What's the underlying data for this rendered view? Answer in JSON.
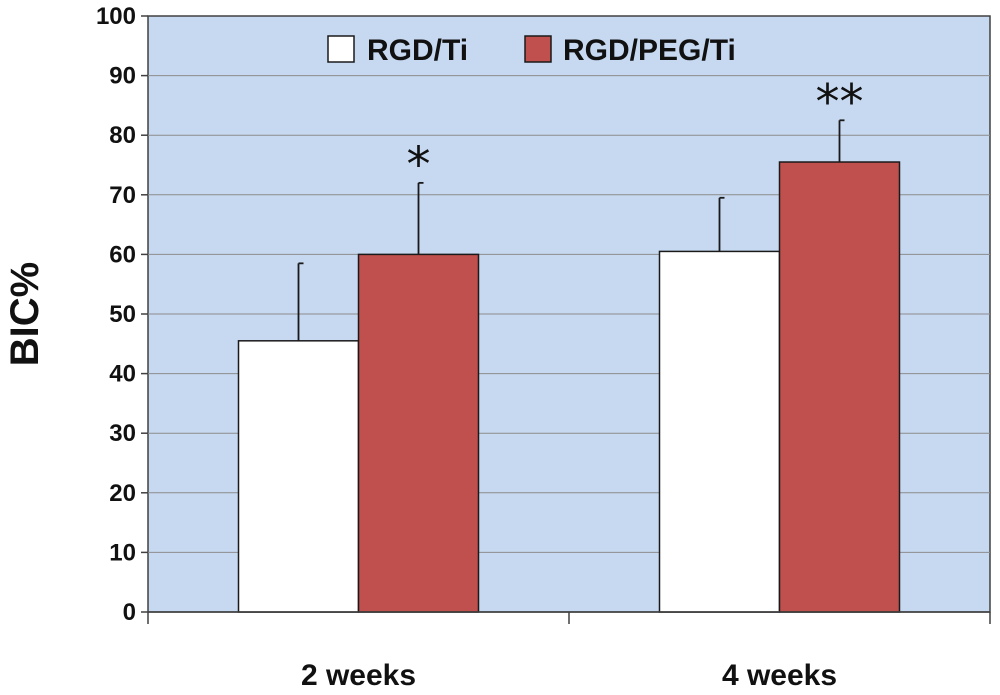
{
  "chart_data": {
    "type": "bar",
    "title": "",
    "xlabel": "",
    "ylabel": "BIC%",
    "ylim": [
      0,
      100
    ],
    "yticks": [
      0,
      10,
      20,
      30,
      40,
      50,
      60,
      70,
      80,
      90,
      100
    ],
    "categories": [
      "2 weeks",
      "4 weeks"
    ],
    "series": [
      {
        "name": "RGD/Ti",
        "color": "#ffffff",
        "values": [
          45.5,
          60.5
        ],
        "error": [
          13,
          9
        ]
      },
      {
        "name": "RGD/PEG/Ti",
        "color": "#c0504d",
        "values": [
          60,
          75.5
        ],
        "error": [
          12,
          7
        ]
      }
    ],
    "annotations": [
      "*",
      "**"
    ],
    "legend": "top-center",
    "grid": true,
    "background": "#c6d9f1"
  }
}
